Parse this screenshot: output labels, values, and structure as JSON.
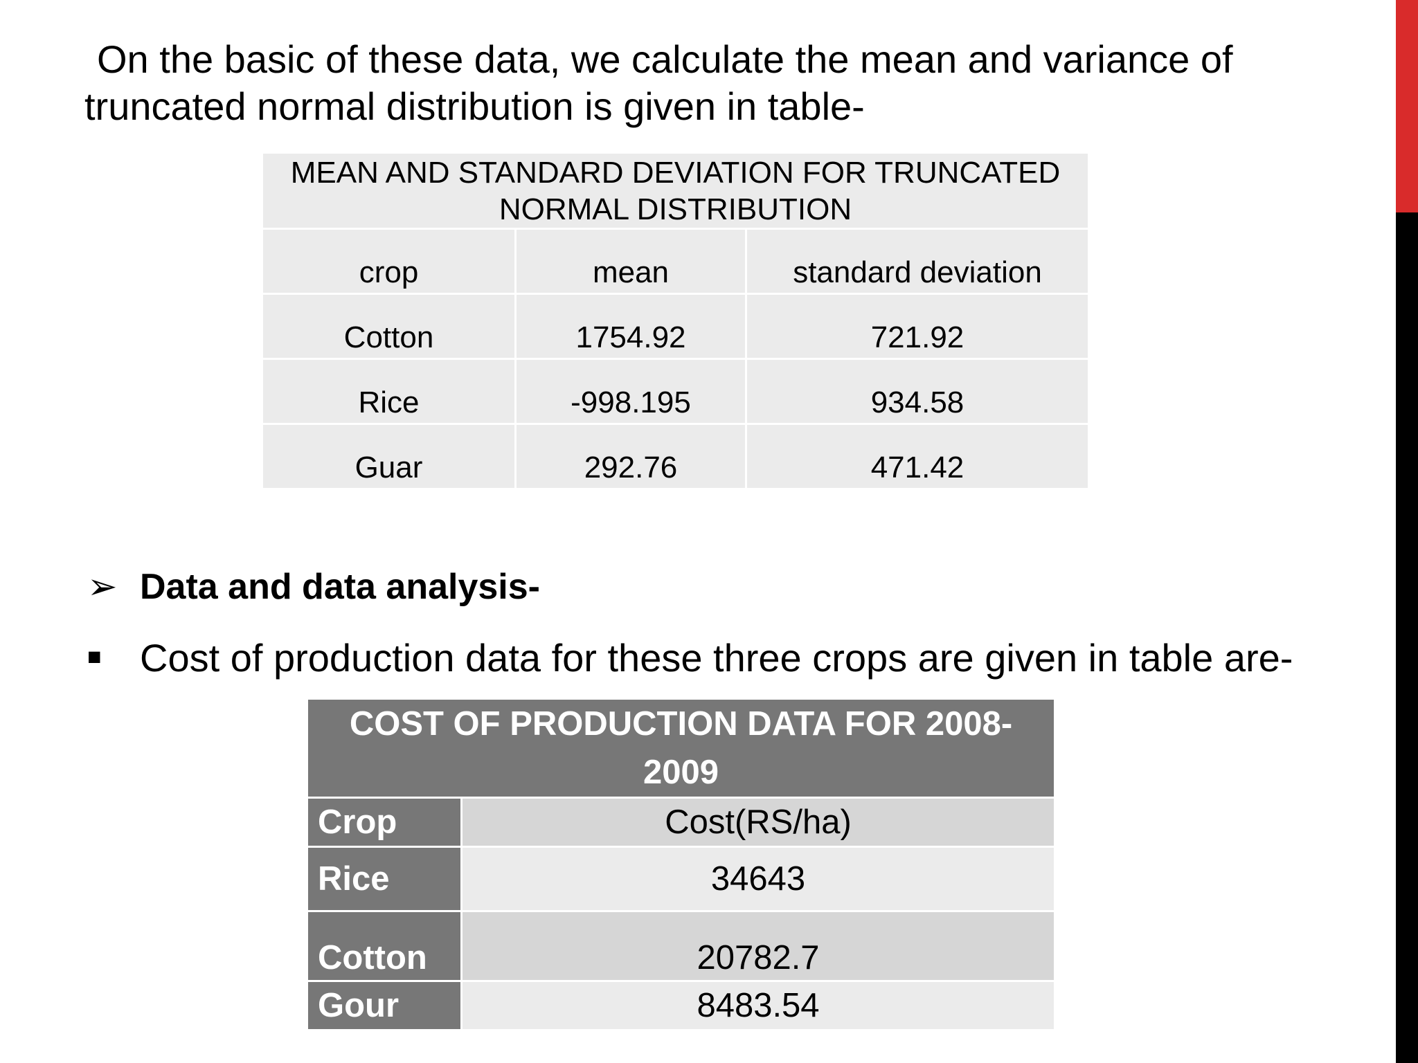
{
  "intro": {
    "line1": "On the basic of these data, we calculate the mean and variance of",
    "line2": "truncated normal distribution is given in table-"
  },
  "table1": {
    "caption_line1": "MEAN AND STANDARD DEVIATION FOR TRUNCATED",
    "caption_line2": "NORMAL DISTRIBUTION",
    "headers": [
      "crop",
      "mean",
      "standard deviation"
    ],
    "rows": [
      [
        "Cotton",
        "1754.92",
        "721.92"
      ],
      [
        "Rice",
        "-998.195",
        "934.58"
      ],
      [
        "Guar",
        "292.76",
        "471.42"
      ]
    ]
  },
  "bullets": {
    "arrow_marker": "➢",
    "heading": "Data and data analysis-",
    "square_marker": "■",
    "text": "Cost of production data for these three crops are given in table are-"
  },
  "table2": {
    "caption_line1": "COST OF PRODUCTION DATA FOR 2008-",
    "caption_line2": "2009",
    "header_label": "Crop",
    "header_value": "Cost(RS/ha)",
    "rows": [
      [
        "Rice",
        "34643"
      ],
      [
        "Cotton",
        "20782.7"
      ],
      [
        "Gour",
        "8483.54"
      ]
    ]
  },
  "colors": {
    "accent_red": "#d92b2b",
    "sidebar_black": "#000000",
    "table2_header": "#777777"
  }
}
